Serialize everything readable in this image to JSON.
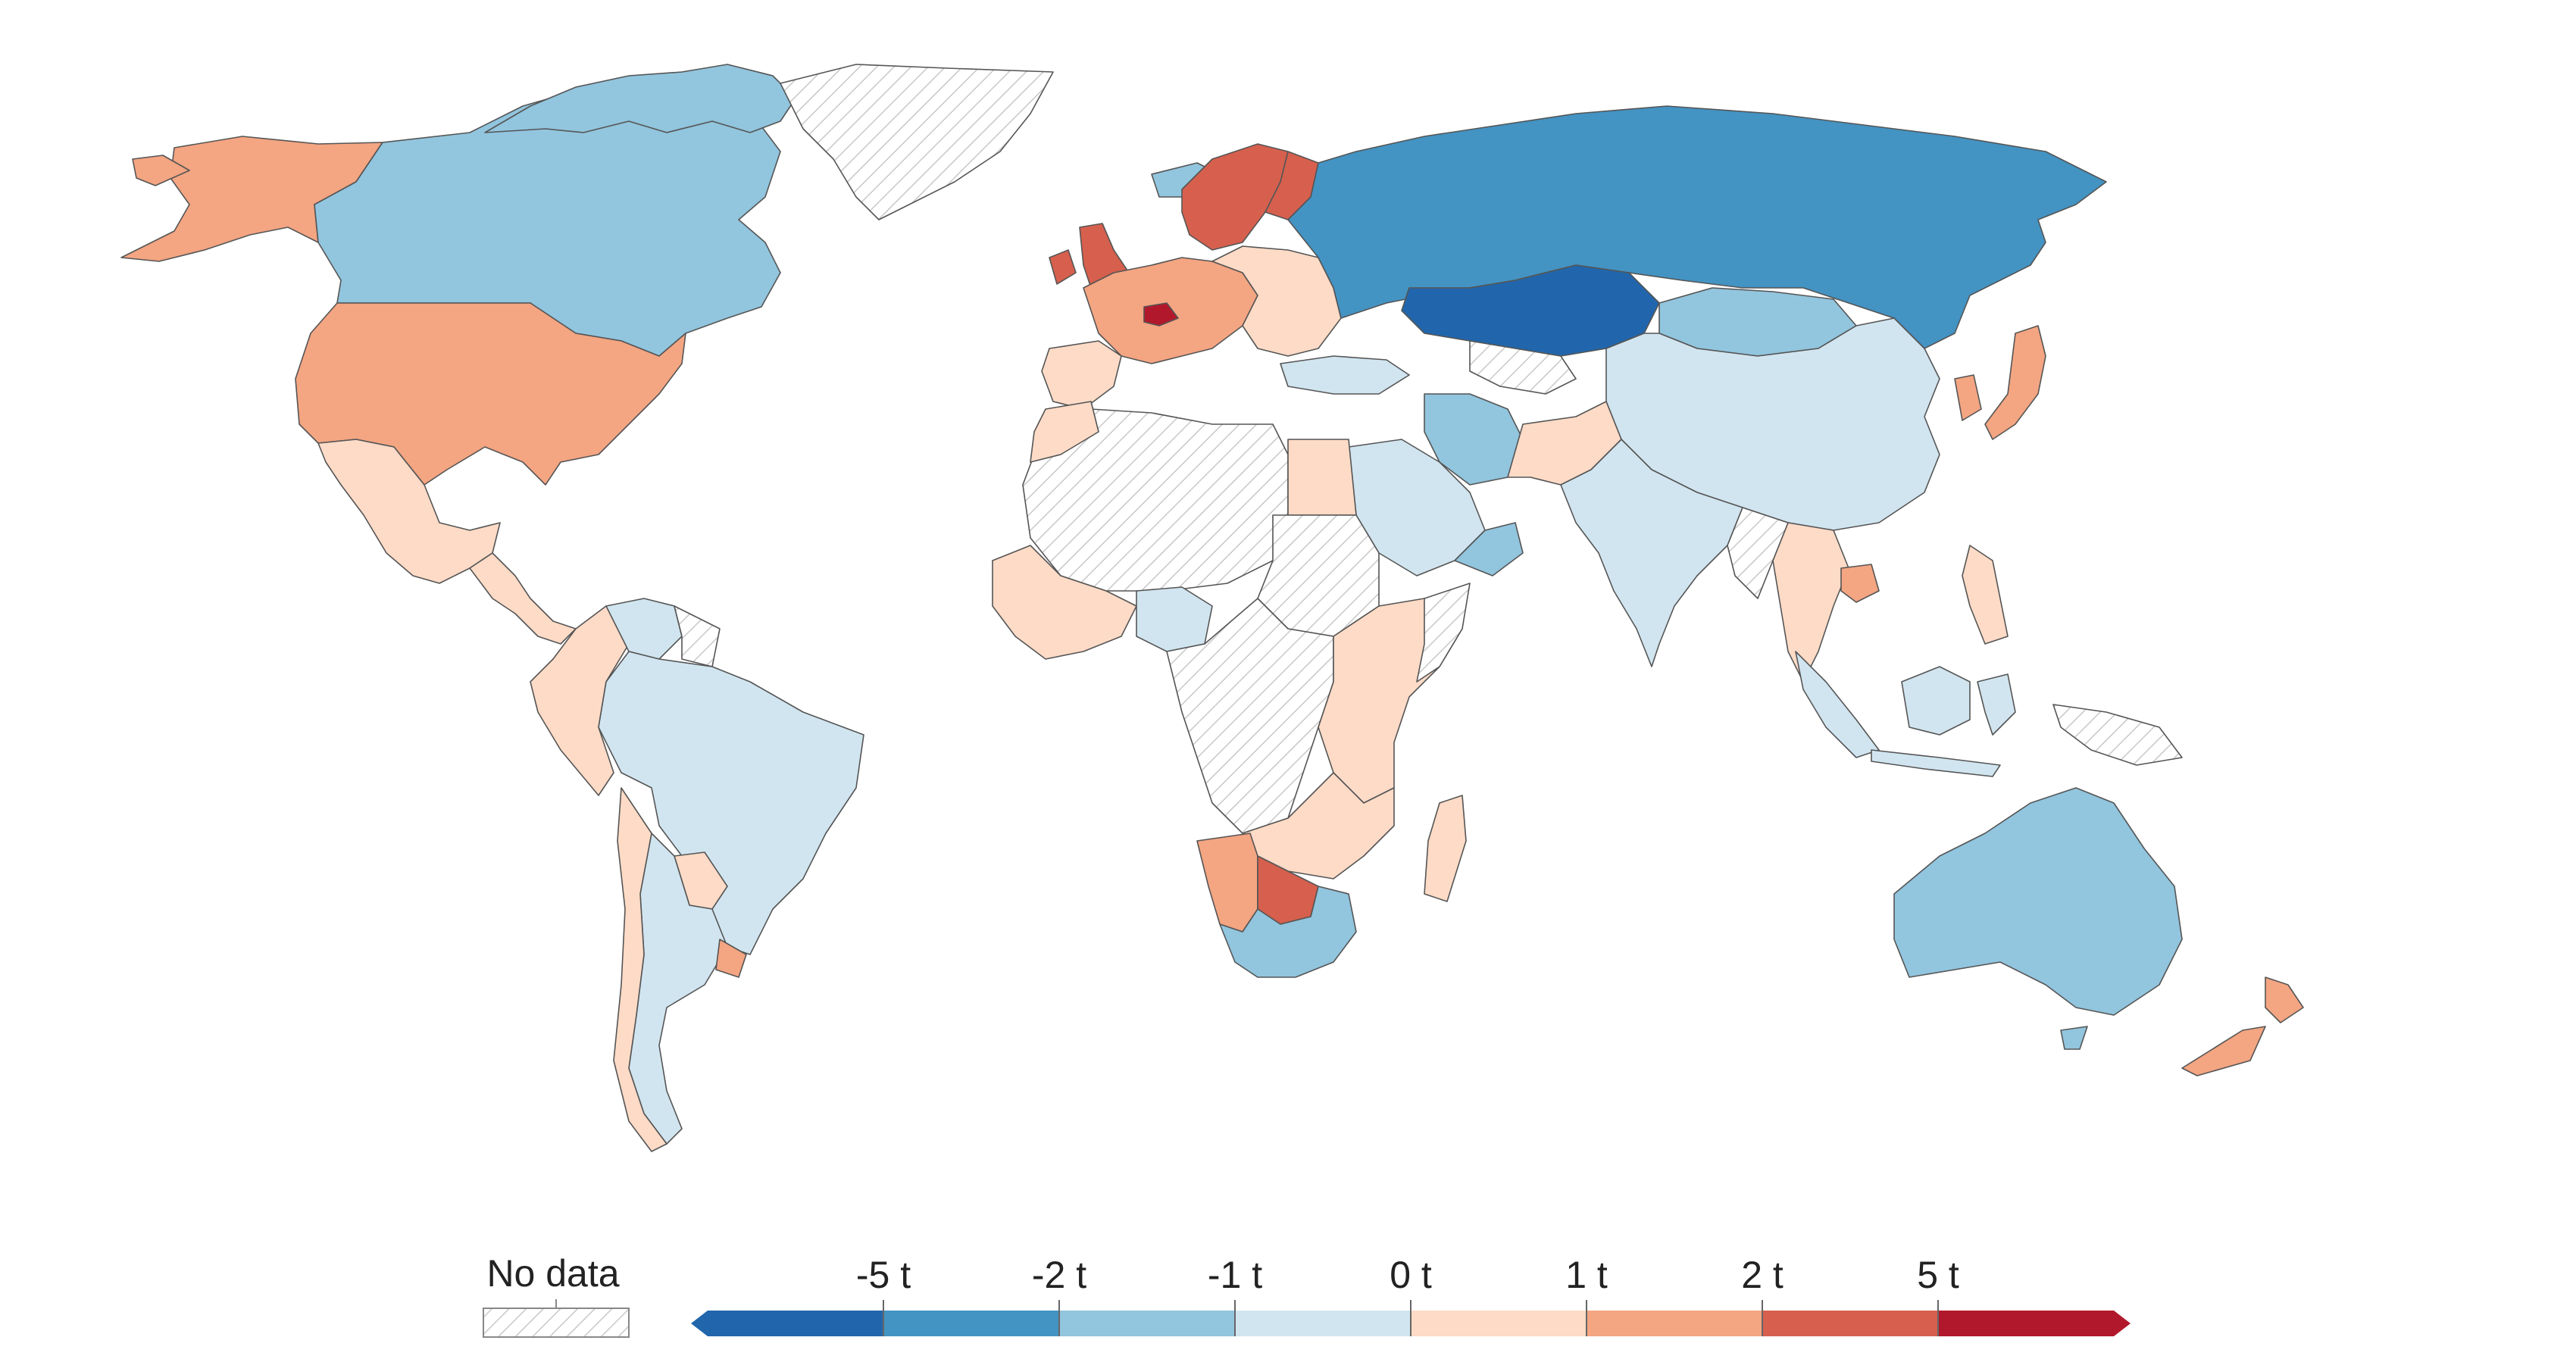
{
  "legend": {
    "no_data_label": "No data",
    "no_data_pattern": "hatched-gray",
    "ticks": [
      "-5 t",
      "-2 t",
      "-1 t",
      "0 t",
      "1 t",
      "2 t",
      "5 t"
    ],
    "bins": [
      {
        "range": "below -5 t",
        "color": "#2166ac"
      },
      {
        "range": "-5 t to -2 t",
        "color": "#4393c3"
      },
      {
        "range": "-2 t to -1 t",
        "color": "#92c5de"
      },
      {
        "range": "-1 t to 0 t",
        "color": "#d1e5f0"
      },
      {
        "range": "0 t to 1 t",
        "color": "#fddbc7"
      },
      {
        "range": "1 t to 2 t",
        "color": "#f4a582"
      },
      {
        "range": "2 t to 5 t",
        "color": "#d6604d"
      },
      {
        "range": "above 5 t",
        "color": "#b2182b"
      }
    ]
  },
  "regions": [
    {
      "name": "Alaska",
      "bin": 5
    },
    {
      "name": "Canada",
      "bin": 2
    },
    {
      "name": "Greenland",
      "bin": -1
    },
    {
      "name": "United States",
      "bin": 5
    },
    {
      "name": "Mexico",
      "bin": 4
    },
    {
      "name": "Central America",
      "bin": 4
    },
    {
      "name": "Colombia & Andes",
      "bin": 4
    },
    {
      "name": "Venezuela",
      "bin": 3
    },
    {
      "name": "Brazil",
      "bin": 3
    },
    {
      "name": "Argentina",
      "bin": 3
    },
    {
      "name": "Chile",
      "bin": 4
    },
    {
      "name": "Uruguay",
      "bin": 5
    },
    {
      "name": "Paraguay",
      "bin": 4
    },
    {
      "name": "Iceland",
      "bin": 2
    },
    {
      "name": "United Kingdom",
      "bin": 6
    },
    {
      "name": "Ireland",
      "bin": 6
    },
    {
      "name": "Scandinavia",
      "bin": 6
    },
    {
      "name": "Western Europe",
      "bin": 5
    },
    {
      "name": "Switzerland",
      "bin": 7
    },
    {
      "name": "Iberia",
      "bin": 4
    },
    {
      "name": "Eastern Europe",
      "bin": 4
    },
    {
      "name": "Russia",
      "bin": 1
    },
    {
      "name": "Kazakhstan",
      "bin": 0
    },
    {
      "name": "Mongolia",
      "bin": 2
    },
    {
      "name": "China",
      "bin": 3
    },
    {
      "name": "India",
      "bin": 3
    },
    {
      "name": "Iran",
      "bin": 2
    },
    {
      "name": "Saudi Arabia",
      "bin": 3
    },
    {
      "name": "Turkey",
      "bin": 3
    },
    {
      "name": "North Africa",
      "bin": -1
    },
    {
      "name": "Egypt",
      "bin": 4
    },
    {
      "name": "Central Africa",
      "bin": -1
    },
    {
      "name": "East Africa",
      "bin": 4
    },
    {
      "name": "West Africa coast",
      "bin": 4
    },
    {
      "name": "Nigeria",
      "bin": 3
    },
    {
      "name": "Southern Africa",
      "bin": 4
    },
    {
      "name": "Namibia",
      "bin": 5
    },
    {
      "name": "Botswana",
      "bin": 6
    },
    {
      "name": "South Africa",
      "bin": 2
    },
    {
      "name": "Madagascar",
      "bin": 4
    },
    {
      "name": "Japan",
      "bin": 5
    },
    {
      "name": "Korea",
      "bin": 5
    },
    {
      "name": "Southeast Asia",
      "bin": 4
    },
    {
      "name": "Cambodia",
      "bin": 5
    },
    {
      "name": "Indonesia",
      "bin": 3
    },
    {
      "name": "Philippines",
      "bin": 4
    },
    {
      "name": "Papua New Guinea",
      "bin": -1
    },
    {
      "name": "Australia",
      "bin": 2
    },
    {
      "name": "New Zealand",
      "bin": 5
    }
  ]
}
